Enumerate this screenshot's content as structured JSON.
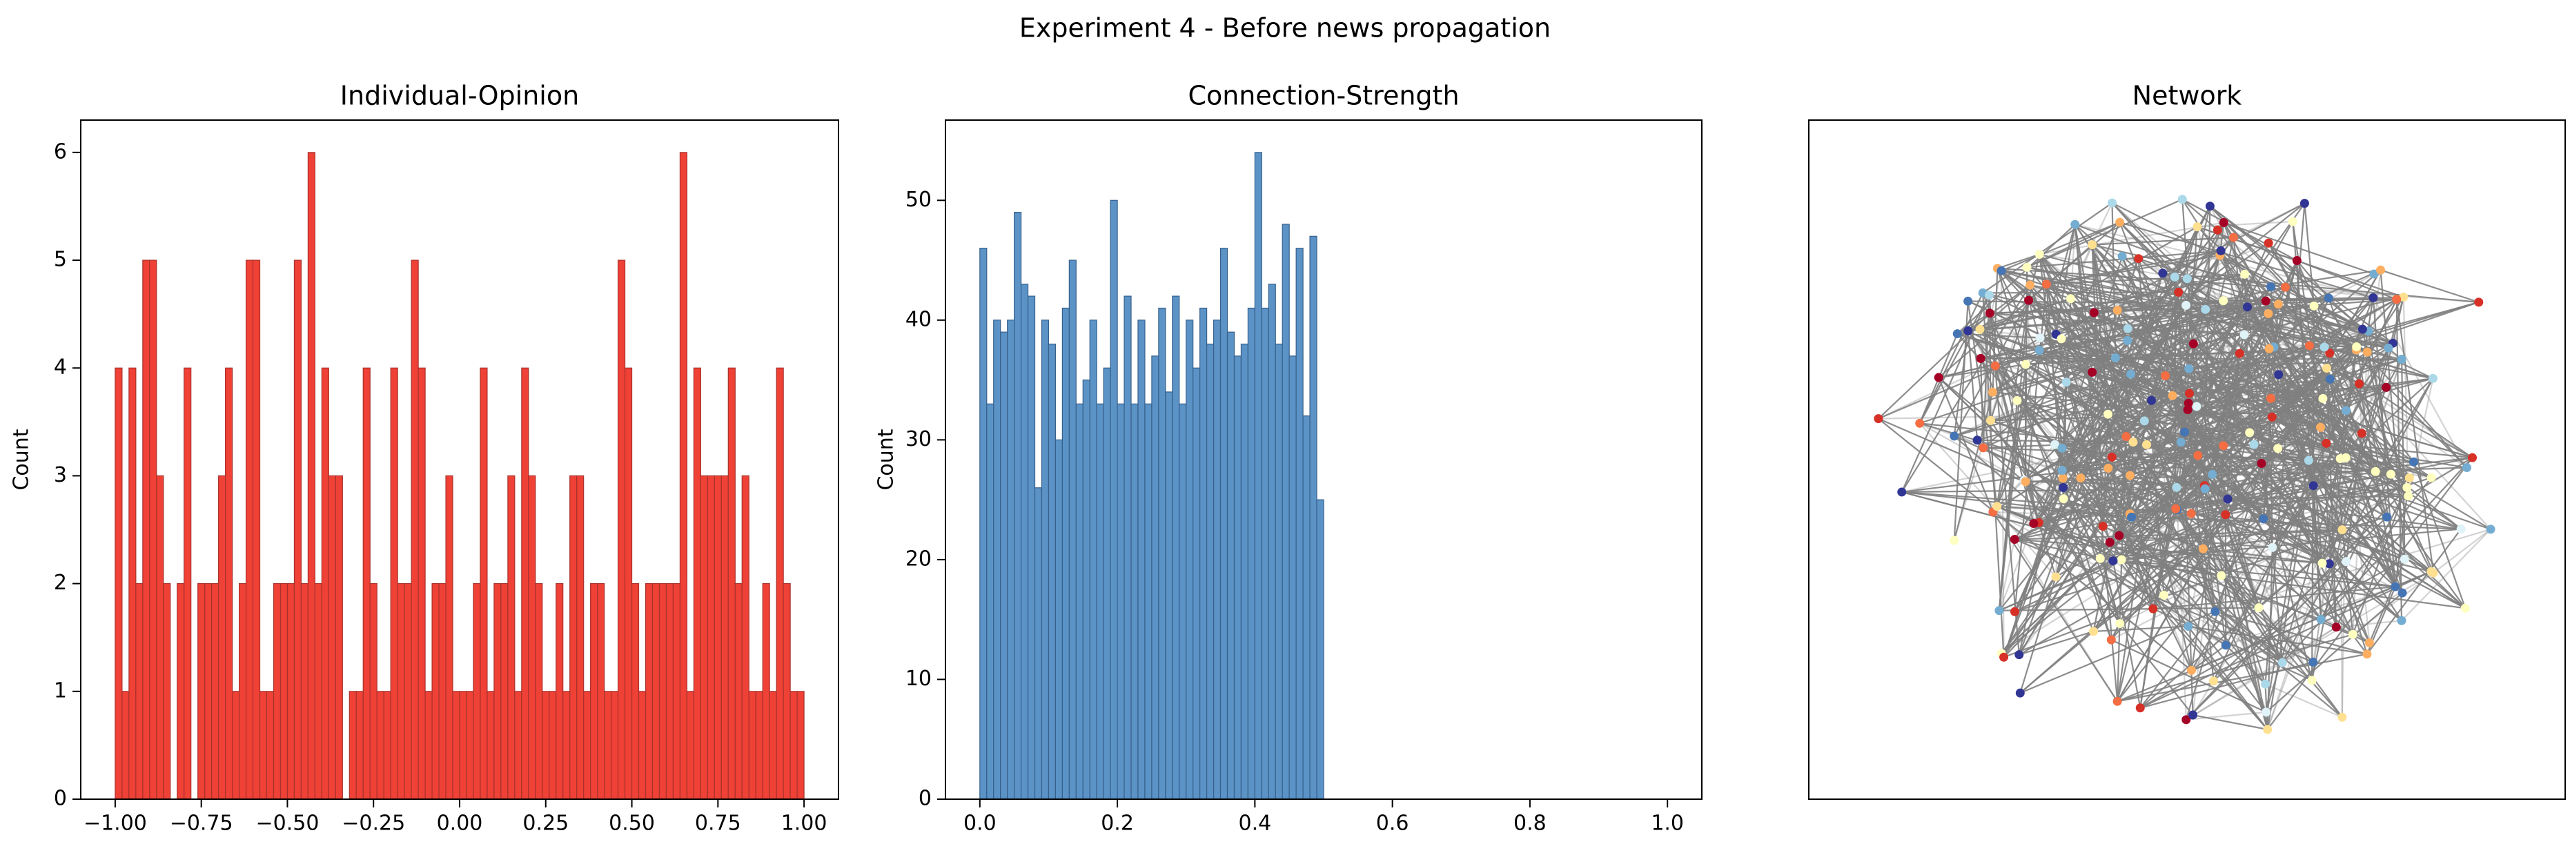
{
  "title": "Experiment 4 - Before news propagation",
  "chart_data": [
    {
      "type": "histogram",
      "title": "Individual-Opinion",
      "ylabel": "Count",
      "color": "#ef4136",
      "edgecolor": "#a8322c",
      "bins": [
        -1,
        -0.98,
        -0.96,
        -0.94,
        -0.92,
        -0.9,
        -0.88,
        -0.86,
        -0.84,
        -0.82,
        -0.8,
        -0.78,
        -0.76,
        -0.74,
        -0.72,
        -0.7,
        -0.68,
        -0.66,
        -0.64,
        -0.62,
        -0.6,
        -0.58,
        -0.56,
        -0.54,
        -0.52,
        -0.5,
        -0.48,
        -0.46,
        -0.44,
        -0.42,
        -0.4,
        -0.38,
        -0.36,
        -0.34,
        -0.32,
        -0.3,
        -0.28,
        -0.26,
        -0.24,
        -0.22,
        -0.2,
        -0.18,
        -0.16,
        -0.14,
        -0.12,
        -0.1,
        -0.08,
        -0.06,
        -0.04,
        -0.02,
        0,
        0.02,
        0.04,
        0.06,
        0.08,
        0.1,
        0.12,
        0.14,
        0.16,
        0.18,
        0.2,
        0.22,
        0.24,
        0.26,
        0.28,
        0.3,
        0.32,
        0.34,
        0.36,
        0.38,
        0.4,
        0.42,
        0.44,
        0.46,
        0.48,
        0.5,
        0.52,
        0.54,
        0.56,
        0.58,
        0.6,
        0.62,
        0.64,
        0.66,
        0.68,
        0.7,
        0.72,
        0.74,
        0.76,
        0.78,
        0.8,
        0.82,
        0.84,
        0.86,
        0.88,
        0.9,
        0.92,
        0.94,
        0.96,
        0.98,
        1
      ],
      "counts": [
        4,
        1,
        4,
        2,
        5,
        5,
        3,
        2,
        0,
        2,
        4,
        0,
        2,
        2,
        2,
        3,
        4,
        1,
        2,
        5,
        5,
        1,
        1,
        2,
        2,
        2,
        5,
        2,
        6,
        2,
        4,
        3,
        3,
        0,
        1,
        1,
        4,
        2,
        1,
        1,
        4,
        2,
        2,
        5,
        4,
        1,
        2,
        2,
        3,
        1,
        1,
        1,
        2,
        4,
        1,
        2,
        2,
        3,
        1,
        4,
        3,
        2,
        1,
        1,
        2,
        1,
        3,
        3,
        1,
        2,
        2,
        1,
        1,
        5,
        4,
        2,
        1,
        2,
        2,
        2,
        2,
        2,
        6,
        1,
        4,
        3,
        3,
        3,
        3,
        4,
        2,
        3,
        1,
        1,
        2,
        1,
        4,
        2,
        1,
        1
      ],
      "xlim": [
        -1.1,
        1.1
      ],
      "ylim": [
        0,
        6.3
      ],
      "xticks": [
        {
          "value": -1,
          "label": "−1.00"
        },
        {
          "value": -0.75,
          "label": "−0.75"
        },
        {
          "value": -0.5,
          "label": "−0.50"
        },
        {
          "value": -0.25,
          "label": "−0.25"
        },
        {
          "value": 0,
          "label": "0.00"
        },
        {
          "value": 0.25,
          "label": "0.25"
        },
        {
          "value": 0.5,
          "label": "0.50"
        },
        {
          "value": 0.75,
          "label": "0.75"
        },
        {
          "value": 1,
          "label": "1.00"
        }
      ],
      "yticks": [
        0,
        1,
        2,
        3,
        4,
        5,
        6
      ]
    },
    {
      "type": "histogram",
      "title": "Connection-Strength",
      "ylabel": "Count",
      "color": "#5b93c7",
      "edgecolor": "#37608a",
      "bins": [
        0,
        0.01,
        0.02,
        0.03,
        0.04,
        0.05,
        0.06,
        0.07,
        0.08,
        0.09,
        0.1,
        0.11,
        0.12,
        0.13,
        0.14,
        0.15,
        0.16,
        0.17,
        0.18,
        0.19,
        0.2,
        0.21,
        0.22,
        0.23,
        0.24,
        0.25,
        0.26,
        0.27,
        0.28,
        0.29,
        0.3,
        0.31,
        0.32,
        0.33,
        0.34,
        0.35,
        0.36,
        0.37,
        0.38,
        0.39,
        0.4,
        0.41,
        0.42,
        0.43,
        0.44,
        0.45,
        0.46,
        0.47,
        0.48,
        0.49,
        0.5
      ],
      "counts": [
        46,
        33,
        40,
        39,
        40,
        49,
        43,
        42,
        26,
        40,
        38,
        30,
        41,
        45,
        33,
        35,
        40,
        33,
        36,
        50,
        33,
        42,
        33,
        40,
        33,
        37,
        41,
        34,
        42,
        33,
        40,
        36,
        41,
        38,
        40,
        46,
        39,
        37,
        38,
        41,
        54,
        41,
        43,
        38,
        48,
        37,
        46,
        32,
        47,
        25
      ],
      "xlim": [
        -0.05,
        1.05
      ],
      "ylim": [
        0,
        56.7
      ],
      "xticks": [
        {
          "value": 0,
          "label": "0.0"
        },
        0.2,
        0.4,
        0.6,
        0.8,
        {
          "value": 1,
          "label": "1.0"
        }
      ],
      "yticks": [
        0,
        10,
        20,
        30,
        40,
        50
      ]
    },
    {
      "type": "network",
      "title": "Network",
      "edge_color": "#808080",
      "node_colors": [
        "#a50026",
        "#d73027",
        "#f46d43",
        "#fdae61",
        "#fee090",
        "#ffffbf",
        "#e0f3f8",
        "#abd9e9",
        "#74add1",
        "#4575b4",
        "#313695"
      ]
    }
  ]
}
